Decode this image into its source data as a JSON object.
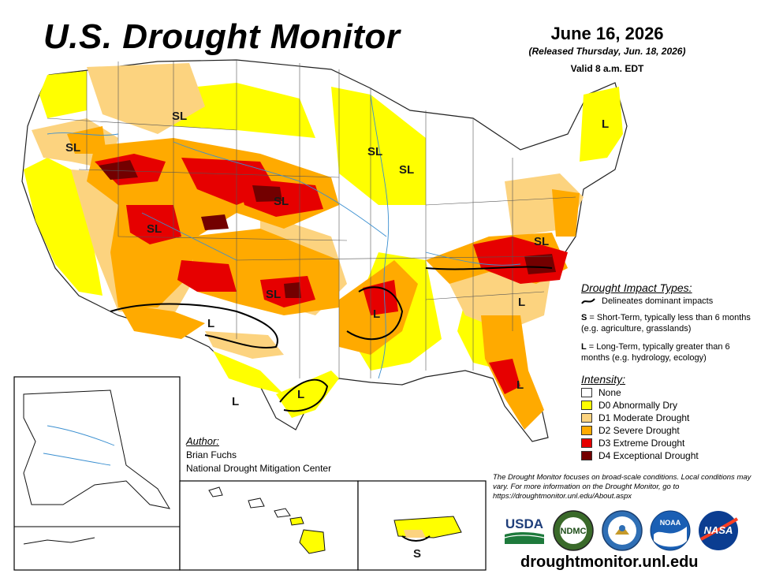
{
  "header": {
    "title": "U.S. Drought Monitor",
    "date": "June 16, 2026",
    "released": "(Released Thursday, Jun. 18, 2026)",
    "valid": "Valid 8 a.m. EDT"
  },
  "impact_legend": {
    "heading": "Drought Impact Types:",
    "line_label": "Delineates dominant impacts",
    "short_term_code": "S",
    "short_term_text": " = Short-Term, typically less than 6 months (e.g. agriculture, grasslands)",
    "long_term_code": "L",
    "long_term_text": " = Long-Term, typically greater than 6 months (e.g. hydrology, ecology)"
  },
  "intensity_legend": {
    "heading": "Intensity:",
    "items": [
      {
        "label": "None",
        "color": "#ffffff"
      },
      {
        "label": "D0 Abnormally Dry",
        "color": "#ffff00"
      },
      {
        "label": "D1 Moderate Drought",
        "color": "#fcd37f"
      },
      {
        "label": "D2 Severe Drought",
        "color": "#ffaa00"
      },
      {
        "label": "D3 Extreme Drought",
        "color": "#e60000"
      },
      {
        "label": "D4 Exceptional Drought",
        "color": "#730000"
      }
    ]
  },
  "author": {
    "heading": "Author:",
    "name": "Brian Fuchs",
    "org": "National Drought Mitigation Center"
  },
  "disclaimer": "The Drought Monitor focuses on broad-scale conditions. Local conditions may vary. For more information on the Drought Monitor, go to https://droughtmonitor.unl.edu/About.aspx",
  "logos": {
    "usda": "USDA",
    "ndmc": "NDMC",
    "noaa": "NOAA",
    "nasa": "NASA"
  },
  "url": "droughtmonitor.unl.edu",
  "map_labels": {
    "sl_northwest": "SL",
    "sl_montana": "SL",
    "sl_minnesota": "SL",
    "sl_wisconsin": "SL",
    "sl_nebraska": "SL",
    "sl_utah": "SL",
    "sl_oklahoma": "SL",
    "sl_virginia": "SL",
    "l_maine": "L",
    "l_texas_west": "L",
    "l_arkansas": "L",
    "l_carolina": "L",
    "l_florida": "L",
    "l_texas_south_a": "L",
    "l_texas_south_b": "L",
    "s_puerto_rico": "S"
  }
}
